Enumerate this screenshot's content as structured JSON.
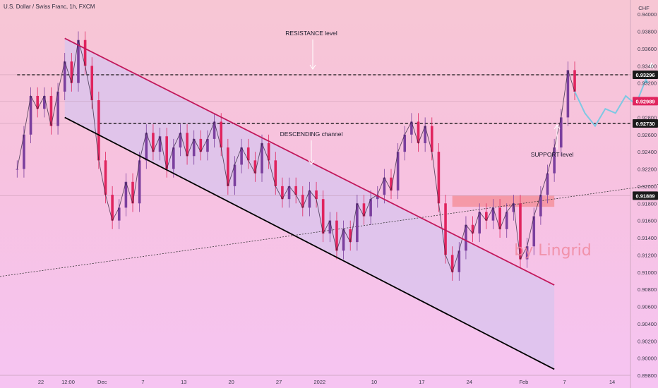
{
  "title": "U.S. Dollar / Swiss Franc, 1h, FXCM",
  "currency": "CHF",
  "watermark": "by Lingrid",
  "chart_data": {
    "type": "line",
    "symbol": "USDCHF",
    "timeframe": "1h",
    "source": "FXCM",
    "ylim": [
      0.898,
      0.941
    ],
    "y_ticks": [
      "0.94000",
      "0.93800",
      "0.93600",
      "0.93400",
      "0.93200",
      "0.92800",
      "0.92600",
      "0.92400",
      "0.92200",
      "0.92000",
      "0.91800",
      "0.91600",
      "0.91400",
      "0.91200",
      "0.91000",
      "0.90800",
      "0.90600",
      "0.90400",
      "0.90200",
      "0.90000",
      "0.89800"
    ],
    "x_ticks": [
      {
        "label": "22",
        "x": 0
      },
      {
        "label": "12:00",
        "x": 4
      },
      {
        "label": "Dec",
        "x": 9
      },
      {
        "label": "7",
        "x": 15
      },
      {
        "label": "13",
        "x": 21
      },
      {
        "label": "20",
        "x": 28
      },
      {
        "label": "27",
        "x": 35
      },
      {
        "label": "2022",
        "x": 41
      },
      {
        "label": "10",
        "x": 49
      },
      {
        "label": "17",
        "x": 56
      },
      {
        "label": "24",
        "x": 63
      },
      {
        "label": "Feb",
        "x": 71
      },
      {
        "label": "7",
        "x": 77
      },
      {
        "label": "14",
        "x": 84
      }
    ],
    "price_tags": [
      {
        "value": 0.93296,
        "label": "0.93296",
        "color": "#1a1a1a"
      },
      {
        "value": 0.92989,
        "label": "0.92989",
        "color": "#e0245e"
      },
      {
        "value": 0.9273,
        "label": "0.92730",
        "color": "#1a1a1a"
      },
      {
        "value": 0.91889,
        "label": "0.91889",
        "color": "#1a1a1a"
      }
    ],
    "price_series": [
      [
        -3.5,
        0.922
      ],
      [
        -2.5,
        0.926
      ],
      [
        -1.5,
        0.9305
      ],
      [
        -0.5,
        0.929
      ],
      [
        0.5,
        0.9305
      ],
      [
        1.5,
        0.927
      ],
      [
        2.5,
        0.931
      ],
      [
        3.5,
        0.9345
      ],
      [
        4.5,
        0.932
      ],
      [
        5.5,
        0.937
      ],
      [
        6.5,
        0.934
      ],
      [
        7.5,
        0.93
      ],
      [
        8.5,
        0.923
      ],
      [
        9.5,
        0.919
      ],
      [
        10.5,
        0.916
      ],
      [
        11.5,
        0.9175
      ],
      [
        12.5,
        0.9205
      ],
      [
        13.5,
        0.918
      ],
      [
        14.5,
        0.923
      ],
      [
        15.5,
        0.9262
      ],
      [
        16.5,
        0.924
      ],
      [
        17.5,
        0.9258
      ],
      [
        18.5,
        0.922
      ],
      [
        19.5,
        0.9245
      ],
      [
        20.5,
        0.9262
      ],
      [
        21.5,
        0.9235
      ],
      [
        22.5,
        0.9255
      ],
      [
        23.5,
        0.924
      ],
      [
        24.5,
        0.9255
      ],
      [
        25.5,
        0.9275
      ],
      [
        26.5,
        0.9245
      ],
      [
        27.5,
        0.92
      ],
      [
        28.5,
        0.9225
      ],
      [
        29.5,
        0.9245
      ],
      [
        30.5,
        0.923
      ],
      [
        31.5,
        0.9215
      ],
      [
        32.5,
        0.925
      ],
      [
        33.5,
        0.923
      ],
      [
        34.5,
        0.92
      ],
      [
        35.5,
        0.9185
      ],
      [
        36.5,
        0.92
      ],
      [
        37.5,
        0.919
      ],
      [
        38.5,
        0.9175
      ],
      [
        39.5,
        0.9195
      ],
      [
        40.5,
        0.9185
      ],
      [
        41.5,
        0.9145
      ],
      [
        42.5,
        0.916
      ],
      [
        43.5,
        0.9125
      ],
      [
        44.5,
        0.915
      ],
      [
        45.5,
        0.9135
      ],
      [
        46.5,
        0.918
      ],
      [
        47.5,
        0.9165
      ],
      [
        48.5,
        0.9185
      ],
      [
        49.5,
        0.919
      ],
      [
        50.5,
        0.921
      ],
      [
        51.5,
        0.9195
      ],
      [
        52.5,
        0.924
      ],
      [
        53.5,
        0.926
      ],
      [
        54.5,
        0.9275
      ],
      [
        55.5,
        0.925
      ],
      [
        56.5,
        0.927
      ],
      [
        57.5,
        0.924
      ],
      [
        58.5,
        0.918
      ],
      [
        59.5,
        0.912
      ],
      [
        60.5,
        0.91
      ],
      [
        61.5,
        0.9125
      ],
      [
        62.5,
        0.9155
      ],
      [
        63.5,
        0.9145
      ],
      [
        64.5,
        0.917
      ],
      [
        65.5,
        0.916
      ],
      [
        66.5,
        0.9175
      ],
      [
        67.5,
        0.915
      ],
      [
        68.5,
        0.917
      ],
      [
        69.5,
        0.918
      ],
      [
        70.5,
        0.9115
      ],
      [
        71.5,
        0.913
      ],
      [
        72.5,
        0.9165
      ],
      [
        73.5,
        0.919
      ],
      [
        74.5,
        0.9215
      ],
      [
        75.5,
        0.9245
      ],
      [
        76.5,
        0.928
      ],
      [
        77.5,
        0.9335
      ],
      [
        78.5,
        0.931
      ]
    ],
    "projection": [
      [
        78.5,
        0.931
      ],
      [
        80,
        0.9285
      ],
      [
        81.5,
        0.927
      ],
      [
        83,
        0.929
      ],
      [
        84.5,
        0.9285
      ],
      [
        86,
        0.9305
      ],
      [
        87.5,
        0.9295
      ],
      [
        89,
        0.9325
      ]
    ],
    "annotations": {
      "resistance": {
        "label": "RESISTANCE level",
        "value": 0.93296
      },
      "support": {
        "label": "SUPPORT level",
        "value": 0.9273
      },
      "channel": {
        "label": "DESCENDING channel"
      }
    },
    "colors": {
      "upper_channel": "#c2185b",
      "lower_channel": "#000000",
      "channel_fill": "#d8c4ee",
      "price": "#2b1f3a",
      "projection": "#7ec8e3",
      "zone": "#f4888f",
      "bull_candle": "#7b3f9e",
      "bear_candle": "#e0245e"
    }
  }
}
